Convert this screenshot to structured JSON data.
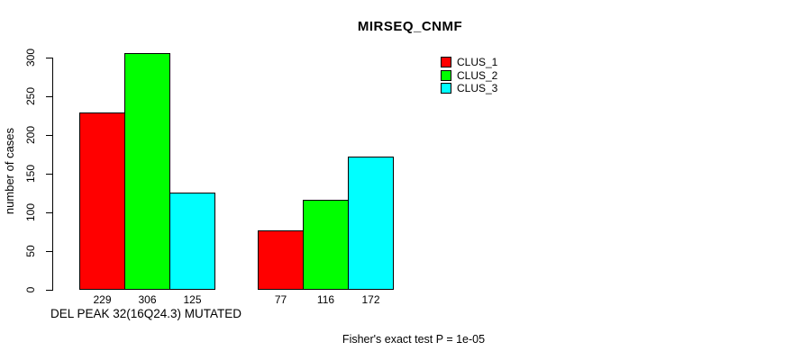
{
  "chart_data": {
    "type": "bar",
    "title": "MIRSEQ_CNMF",
    "ylabel": "number of cases",
    "xlabel": "DEL PEAK 32(16Q24.3) MUTATED",
    "annotation": "Fisher's exact test P = 1e-05",
    "series": [
      {
        "name": "CLUS_1",
        "color": "#ff0000",
        "values": [
          229,
          77
        ]
      },
      {
        "name": "CLUS_2",
        "color": "#00ff00",
        "values": [
          306,
          116
        ]
      },
      {
        "name": "CLUS_3",
        "color": "#00ffff",
        "values": [
          125,
          172
        ]
      }
    ],
    "value_labels": [
      [
        229,
        306,
        125
      ],
      [
        77,
        116,
        172
      ]
    ],
    "yticks": [
      0,
      50,
      100,
      150,
      200,
      250,
      300
    ],
    "ylim": [
      0,
      310
    ],
    "grid": false,
    "legend_position": "top-right",
    "background": "#ffffff",
    "bar_border_color": "#000000"
  }
}
